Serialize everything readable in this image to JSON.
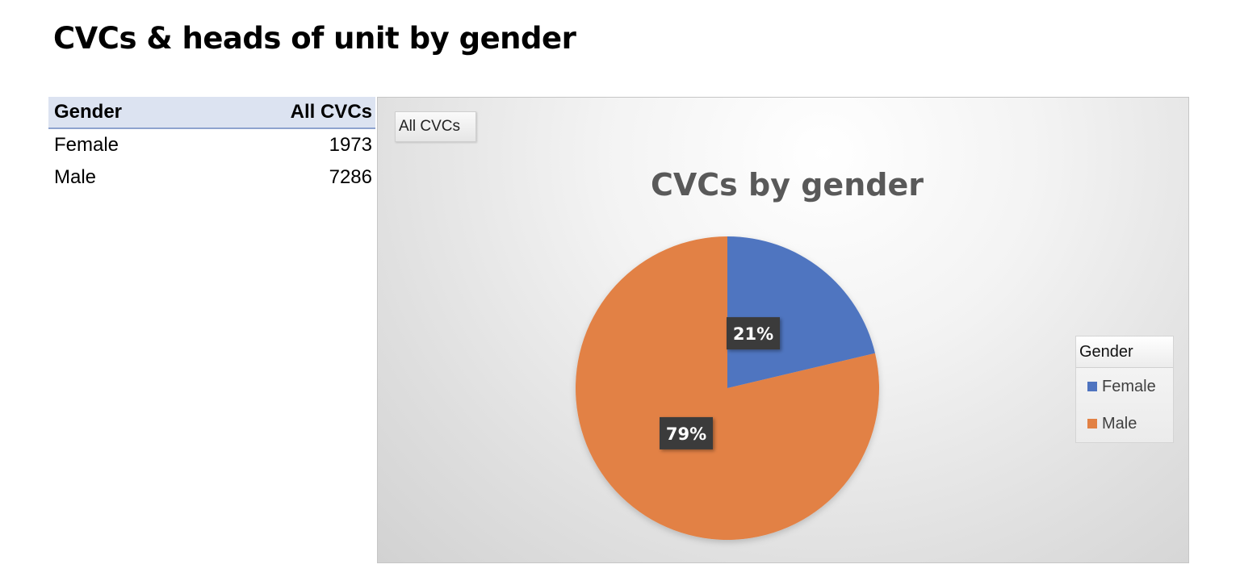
{
  "page": {
    "title": "CVCs & heads of unit by gender"
  },
  "pivot_table": {
    "header": {
      "row_label": "Gender",
      "value_label": "All CVCs"
    },
    "rows": [
      {
        "label": "Female",
        "value": "1973"
      },
      {
        "label": "Male",
        "value": "7286"
      }
    ]
  },
  "chart": {
    "field_button": "All CVCs",
    "legend_title": "Gender",
    "legend": [
      {
        "label": "Female",
        "color": "#4f74c0"
      },
      {
        "label": "Male",
        "color": "#e28144"
      }
    ]
  },
  "chart_data": {
    "type": "pie",
    "title": "CVCs by gender",
    "categories": [
      "Female",
      "Male"
    ],
    "values": [
      1973,
      7286
    ],
    "data_labels": [
      "21%",
      "79%"
    ],
    "colors": [
      "#4f74c0",
      "#e28144"
    ],
    "legend_position": "right"
  }
}
